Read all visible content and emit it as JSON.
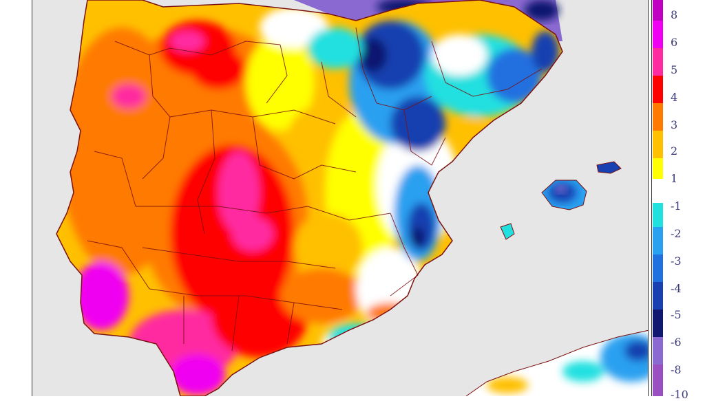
{
  "map": {
    "subject": "temperature anomaly over the Iberian Peninsula and Balearic Islands",
    "colors": {
      "sea": "#e6e6e6",
      "border": "#7a1010",
      "coast": "#7a1010"
    }
  },
  "legend": {
    "labels": [
      "8",
      "6",
      "5",
      "4",
      "3",
      "2",
      "1",
      "-1",
      "-2",
      "-3",
      "-4",
      "-5",
      "-6",
      "-8",
      "-10"
    ],
    "classes": [
      {
        "color": "#c000c0"
      },
      {
        "color": "#f000f0"
      },
      {
        "color": "#ff2aa0"
      },
      {
        "color": "#ff0000"
      },
      {
        "color": "#ff7a00"
      },
      {
        "color": "#ffc000"
      },
      {
        "color": "#ffff00"
      },
      {
        "color": "#ffffff"
      },
      {
        "color": "#20e0e0"
      },
      {
        "color": "#2aa0f0"
      },
      {
        "color": "#2070e0"
      },
      {
        "color": "#1840b0"
      },
      {
        "color": "#101870"
      },
      {
        "color": "#8a6ad0"
      },
      {
        "color": "#9a50c0"
      }
    ]
  }
}
